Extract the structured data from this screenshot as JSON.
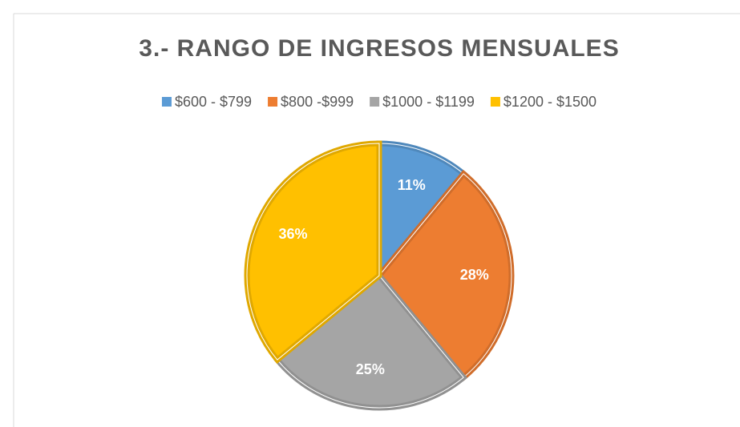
{
  "chart_data": {
    "type": "pie",
    "title": "3.- RANGO DE INGRESOS MENSUALES",
    "categories": [
      "$600 - $799",
      "$800 -$999",
      "$1000 - $1199",
      "$1200 - $1500"
    ],
    "values": [
      11,
      28,
      25,
      36
    ],
    "value_labels": [
      "11%",
      "28%",
      "25%",
      "36%"
    ],
    "colors": [
      "#5b9bd5",
      "#ed7d31",
      "#a5a5a5",
      "#ffc000"
    ],
    "legend": "top"
  }
}
